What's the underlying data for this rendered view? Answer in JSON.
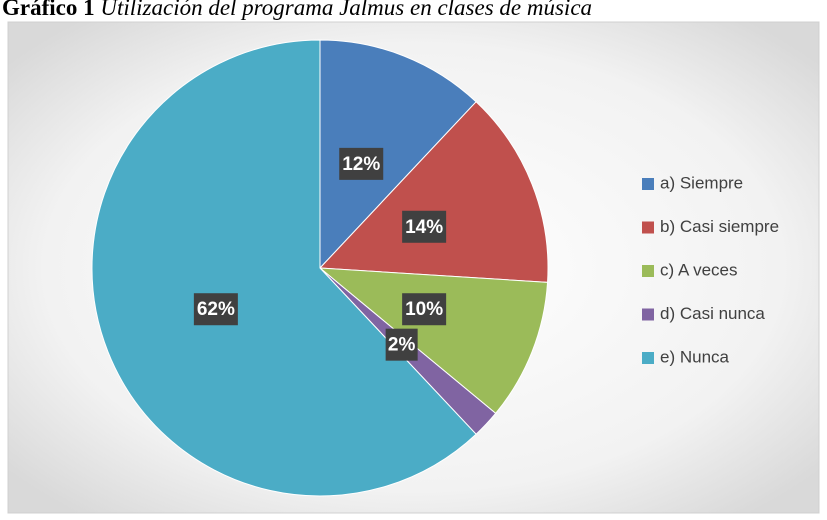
{
  "chart_data": {
    "type": "pie",
    "title_label": "Gráfico 1",
    "title": "Utilización del programa Jalmus en clases de música",
    "categories": [
      "a) Siempre",
      "b) Casi siempre",
      "c) A veces",
      "d) Casi nunca",
      "e) Nunca"
    ],
    "values": [
      12,
      14,
      10,
      2,
      62
    ],
    "value_labels": [
      "12%",
      "14%",
      "10%",
      "2%",
      "62%"
    ],
    "colors": [
      "#4a7ebb",
      "#c0504d",
      "#9bbb59",
      "#8064a2",
      "#4bacc6"
    ],
    "legend": "right"
  }
}
